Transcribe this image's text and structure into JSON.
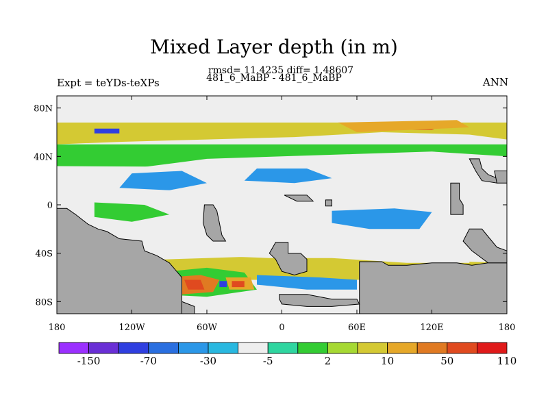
{
  "chart_data": {
    "type": "heatmap",
    "title": "Mixed Layer depth (in m)",
    "stats": "rmsd= 11.4235 diff= 1.48607",
    "subtitle": "481_6_MaBP - 481_6_MaBP",
    "left_label": "Expt = teYDs-teXPs",
    "right_label": "ANN",
    "xlim": [
      -180,
      180
    ],
    "ylim": [
      -90,
      90
    ],
    "x_ticks": [
      {
        "value": -180,
        "label": "180"
      },
      {
        "value": -120,
        "label": "120W"
      },
      {
        "value": -60,
        "label": "60W"
      },
      {
        "value": 0,
        "label": "0"
      },
      {
        "value": 60,
        "label": "60E"
      },
      {
        "value": 120,
        "label": "120E"
      },
      {
        "value": 180,
        "label": "180"
      }
    ],
    "y_ticks": [
      {
        "value": 80,
        "label": "80N"
      },
      {
        "value": 40,
        "label": "40N"
      },
      {
        "value": 0,
        "label": "0"
      },
      {
        "value": -40,
        "label": "40S"
      },
      {
        "value": -80,
        "label": "80S"
      }
    ],
    "colorbar": {
      "colors": [
        "#9b30ff",
        "#6a2fd6",
        "#2f3fe0",
        "#2a6fe0",
        "#2b97e8",
        "#29b8e0",
        "#eeeeee",
        "#2fd6a0",
        "#33cc33",
        "#a6d933",
        "#d4c933",
        "#e6a829",
        "#e07a22",
        "#e04a1f",
        "#e01a1a"
      ],
      "labels": [
        "-150",
        "-70",
        "-30",
        "-5",
        "2",
        "10",
        "50",
        "110"
      ]
    },
    "land_color": "#a6a6a6",
    "land": [
      {
        "name": "antarctica-east",
        "points": [
          [
            62,
            -47
          ],
          [
            80,
            -47
          ],
          [
            85,
            -50
          ],
          [
            100,
            -50
          ],
          [
            120,
            -48
          ],
          [
            140,
            -48
          ],
          [
            152,
            -50
          ],
          [
            165,
            -48
          ],
          [
            180,
            -48
          ],
          [
            180,
            -90
          ],
          [
            62,
            -90
          ]
        ]
      },
      {
        "name": "antarctica-west",
        "points": [
          [
            -180,
            -70
          ],
          [
            -165,
            -70
          ],
          [
            -150,
            -72
          ],
          [
            -140,
            -72
          ],
          [
            -128,
            -74
          ],
          [
            -110,
            -74
          ],
          [
            -100,
            -78
          ],
          [
            -90,
            -80
          ],
          [
            -80,
            -80
          ],
          [
            -70,
            -84
          ],
          [
            -70,
            -90
          ],
          [
            -180,
            -90
          ]
        ]
      },
      {
        "name": "antarctica-ross",
        "points": [
          [
            -2,
            -74
          ],
          [
            20,
            -74
          ],
          [
            40,
            -78
          ],
          [
            60,
            -78
          ],
          [
            62,
            -82
          ],
          [
            40,
            -84
          ],
          [
            20,
            -84
          ],
          [
            0,
            -82
          ],
          [
            -2,
            -78
          ]
        ]
      },
      {
        "name": "south-america",
        "points": [
          [
            -180,
            -3
          ],
          [
            -172,
            -3
          ],
          [
            -165,
            -8
          ],
          [
            -155,
            -16
          ],
          [
            -147,
            -20
          ],
          [
            -140,
            -22
          ],
          [
            -130,
            -28
          ],
          [
            -112,
            -30
          ],
          [
            -110,
            -38
          ],
          [
            -100,
            -42
          ],
          [
            -90,
            -48
          ],
          [
            -85,
            -54
          ],
          [
            -80,
            -60
          ],
          [
            -80,
            -90
          ],
          [
            -180,
            -90
          ]
        ]
      },
      {
        "name": "africa-block",
        "points": [
          [
            -62,
            0
          ],
          [
            -55,
            0
          ],
          [
            -52,
            -5
          ],
          [
            -50,
            -15
          ],
          [
            -48,
            -25
          ],
          [
            -45,
            -30
          ],
          [
            -55,
            -30
          ],
          [
            -60,
            -25
          ],
          [
            -63,
            -15
          ]
        ]
      },
      {
        "name": "mid-island",
        "points": [
          [
            -5,
            -31
          ],
          [
            5,
            -31
          ],
          [
            5,
            -40
          ],
          [
            15,
            -40
          ],
          [
            20,
            -45
          ],
          [
            20,
            -55
          ],
          [
            10,
            -58
          ],
          [
            0,
            -55
          ],
          [
            -5,
            -45
          ],
          [
            -10,
            -40
          ]
        ]
      },
      {
        "name": "australia-west",
        "points": [
          [
            150,
            -20
          ],
          [
            160,
            -20
          ],
          [
            168,
            -30
          ],
          [
            172,
            -35
          ],
          [
            180,
            -38
          ],
          [
            180,
            -48
          ],
          [
            165,
            -48
          ],
          [
            152,
            -38
          ],
          [
            145,
            -30
          ]
        ]
      },
      {
        "name": "pacific-island",
        "points": [
          [
            135,
            18
          ],
          [
            142,
            18
          ],
          [
            142,
            5
          ],
          [
            145,
            0
          ],
          [
            145,
            -8
          ],
          [
            135,
            -8
          ]
        ]
      },
      {
        "name": "north-island",
        "points": [
          [
            150,
            38
          ],
          [
            158,
            38
          ],
          [
            160,
            30
          ],
          [
            165,
            25
          ],
          [
            172,
            22
          ],
          [
            172,
            18
          ],
          [
            160,
            20
          ],
          [
            155,
            28
          ]
        ]
      },
      {
        "name": "north-strip",
        "points": [
          [
            170,
            28
          ],
          [
            180,
            28
          ],
          [
            180,
            18
          ],
          [
            172,
            18
          ]
        ]
      },
      {
        "name": "small-island-a",
        "points": [
          [
            2,
            8
          ],
          [
            20,
            8
          ],
          [
            25,
            3
          ],
          [
            12,
            3
          ]
        ]
      },
      {
        "name": "small-island-b",
        "points": [
          [
            35,
            4
          ],
          [
            40,
            4
          ],
          [
            40,
            -1
          ],
          [
            35,
            -1
          ]
        ]
      }
    ],
    "regions": [
      {
        "level": 6,
        "points": [
          [
            -180,
            74
          ],
          [
            180,
            74
          ],
          [
            180,
            90
          ],
          [
            -180,
            90
          ]
        ]
      },
      {
        "level": 10,
        "points": [
          [
            -180,
            50
          ],
          [
            -130,
            52
          ],
          [
            -60,
            54
          ],
          [
            10,
            56
          ],
          [
            80,
            60
          ],
          [
            150,
            58
          ],
          [
            180,
            54
          ],
          [
            180,
            68
          ],
          [
            -180,
            68
          ]
        ]
      },
      {
        "level": 8,
        "points": [
          [
            -180,
            28
          ],
          [
            -120,
            30
          ],
          [
            -60,
            38
          ],
          [
            0,
            40
          ],
          [
            60,
            42
          ],
          [
            120,
            44
          ],
          [
            180,
            40
          ],
          [
            180,
            50
          ],
          [
            -180,
            50
          ]
        ]
      },
      {
        "level": 6,
        "points": [
          [
            -180,
            12
          ],
          [
            -110,
            18
          ],
          [
            -40,
            24
          ],
          [
            20,
            28
          ],
          [
            90,
            28
          ],
          [
            150,
            22
          ],
          [
            180,
            22
          ],
          [
            180,
            30
          ],
          [
            -180,
            32
          ]
        ]
      },
      {
        "level": 4,
        "points": [
          [
            -130,
            14
          ],
          [
            -90,
            12
          ],
          [
            -60,
            18
          ],
          [
            -80,
            28
          ],
          [
            -120,
            26
          ]
        ]
      },
      {
        "level": 4,
        "points": [
          [
            -30,
            20
          ],
          [
            10,
            18
          ],
          [
            40,
            22
          ],
          [
            20,
            30
          ],
          [
            -20,
            30
          ]
        ]
      },
      {
        "level": 6,
        "points": [
          [
            -180,
            -3
          ],
          [
            -130,
            -5
          ],
          [
            -80,
            -8
          ],
          [
            -30,
            -10
          ],
          [
            20,
            -12
          ],
          [
            80,
            -10
          ],
          [
            140,
            -8
          ],
          [
            180,
            -6
          ],
          [
            180,
            12
          ],
          [
            -180,
            12
          ]
        ]
      },
      {
        "level": 4,
        "points": [
          [
            40,
            -5
          ],
          [
            90,
            -3
          ],
          [
            120,
            -6
          ],
          [
            110,
            -20
          ],
          [
            70,
            -20
          ],
          [
            40,
            -15
          ]
        ]
      },
      {
        "level": 8,
        "points": [
          [
            -150,
            2
          ],
          [
            -110,
            0
          ],
          [
            -90,
            -8
          ],
          [
            -120,
            -14
          ],
          [
            -150,
            -10
          ]
        ]
      },
      {
        "level": 10,
        "points": [
          [
            -180,
            -48
          ],
          [
            -120,
            -46
          ],
          [
            -60,
            -44
          ],
          [
            0,
            -42
          ],
          [
            60,
            -44
          ],
          [
            120,
            -46
          ],
          [
            180,
            -48
          ],
          [
            180,
            -62
          ],
          [
            -180,
            -62
          ]
        ]
      },
      {
        "level": 6,
        "points": [
          [
            -60,
            -30
          ],
          [
            0,
            -30
          ],
          [
            60,
            -34
          ],
          [
            120,
            -38
          ],
          [
            150,
            -40
          ],
          [
            150,
            -48
          ],
          [
            100,
            -48
          ],
          [
            40,
            -44
          ],
          [
            -10,
            -44
          ],
          [
            -60,
            -42
          ]
        ]
      },
      {
        "level": 4,
        "points": [
          [
            -20,
            -58
          ],
          [
            30,
            -60
          ],
          [
            60,
            -62
          ],
          [
            60,
            -70
          ],
          [
            20,
            -70
          ],
          [
            -20,
            -66
          ]
        ]
      },
      {
        "level": 8,
        "points": [
          [
            -100,
            -56
          ],
          [
            -60,
            -52
          ],
          [
            -30,
            -56
          ],
          [
            -20,
            -70
          ],
          [
            -60,
            -76
          ],
          [
            -100,
            -74
          ]
        ]
      },
      {
        "level": 12,
        "points": [
          [
            -92,
            -60
          ],
          [
            -65,
            -58
          ],
          [
            -50,
            -62
          ],
          [
            -55,
            -72
          ],
          [
            -80,
            -74
          ],
          [
            -95,
            -68
          ]
        ]
      },
      {
        "level": 13,
        "points": [
          [
            -78,
            -62
          ],
          [
            -65,
            -62
          ],
          [
            -62,
            -70
          ],
          [
            -75,
            -70
          ]
        ]
      },
      {
        "level": 11,
        "points": [
          [
            -45,
            -60
          ],
          [
            -25,
            -60
          ],
          [
            -22,
            -70
          ],
          [
            -42,
            -70
          ]
        ]
      },
      {
        "level": 13,
        "points": [
          [
            -40,
            -63
          ],
          [
            -30,
            -63
          ],
          [
            -30,
            -68
          ],
          [
            -40,
            -68
          ]
        ]
      },
      {
        "level": 2,
        "points": [
          [
            -50,
            -63
          ],
          [
            -44,
            -63
          ],
          [
            -44,
            -68
          ],
          [
            -50,
            -68
          ]
        ]
      },
      {
        "level": 2,
        "points": [
          [
            -150,
            63
          ],
          [
            -130,
            63
          ],
          [
            -130,
            59
          ],
          [
            -150,
            59
          ]
        ]
      },
      {
        "level": 13,
        "points": [
          [
            60,
            66
          ],
          [
            100,
            68
          ],
          [
            130,
            66
          ],
          [
            120,
            62
          ],
          [
            80,
            62
          ]
        ]
      },
      {
        "level": 11,
        "points": [
          [
            45,
            68
          ],
          [
            140,
            70
          ],
          [
            150,
            64
          ],
          [
            60,
            60
          ]
        ]
      }
    ]
  }
}
